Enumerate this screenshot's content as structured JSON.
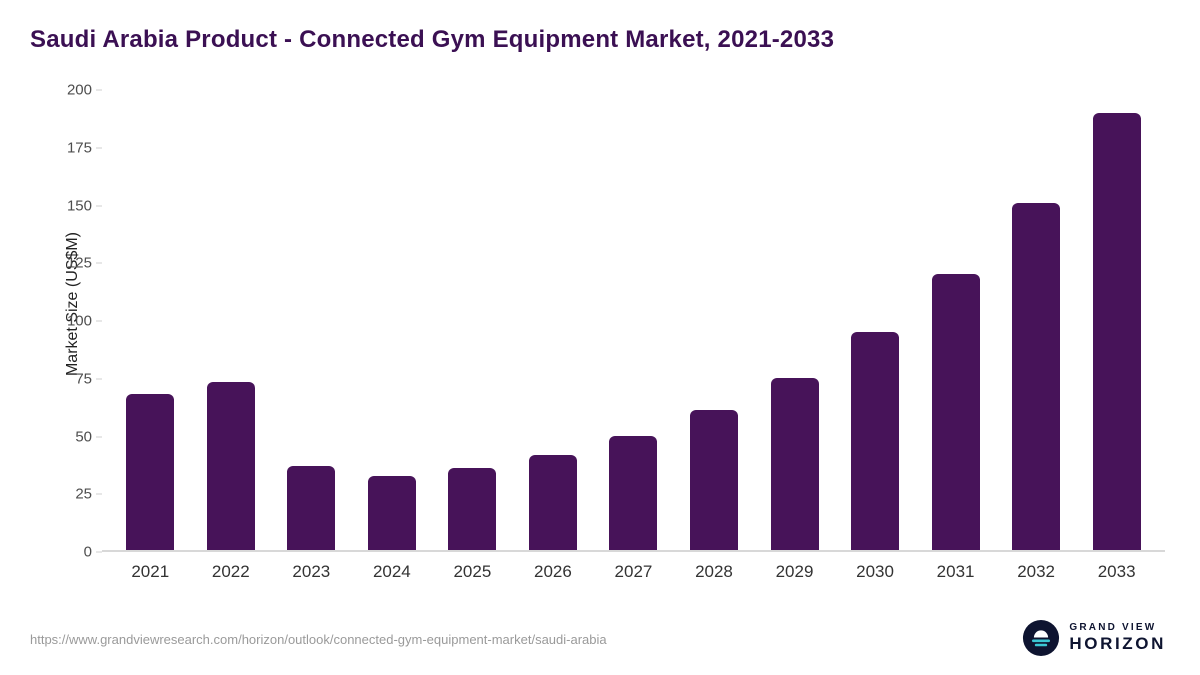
{
  "title": "Saudi Arabia Product - Connected Gym Equipment Market, 2021-2033",
  "colors": {
    "bar": "#471359",
    "title": "#3b1053",
    "brand_dark": "#0e1430",
    "brand_teal": "#3bc7d4",
    "axis_line": "#d8d8d8",
    "tick_text": "#4d4d4d"
  },
  "chart_data": {
    "type": "bar",
    "categories": [
      "2021",
      "2022",
      "2023",
      "2024",
      "2025",
      "2026",
      "2027",
      "2028",
      "2029",
      "2030",
      "2031",
      "2032",
      "2033"
    ],
    "values": [
      68,
      73,
      36.5,
      32,
      35.5,
      41.5,
      49.5,
      61,
      75,
      95,
      120,
      151,
      190
    ],
    "title": "Saudi Arabia Product - Connected Gym Equipment Market, 2021-2033",
    "xlabel": "",
    "ylabel": "Market Size (US$M)",
    "ylim": [
      0,
      200
    ],
    "yticks": [
      0,
      25,
      50,
      75,
      100,
      125,
      150,
      175,
      200
    ],
    "grid": false,
    "legend": false,
    "bar_color": "#471359"
  },
  "footer": {
    "url": "https://www.grandviewresearch.com/horizon/outlook/connected-gym-equipment-market/saudi-arabia",
    "brand_line1": "GRAND VIEW",
    "brand_line2": "HORIZON"
  }
}
